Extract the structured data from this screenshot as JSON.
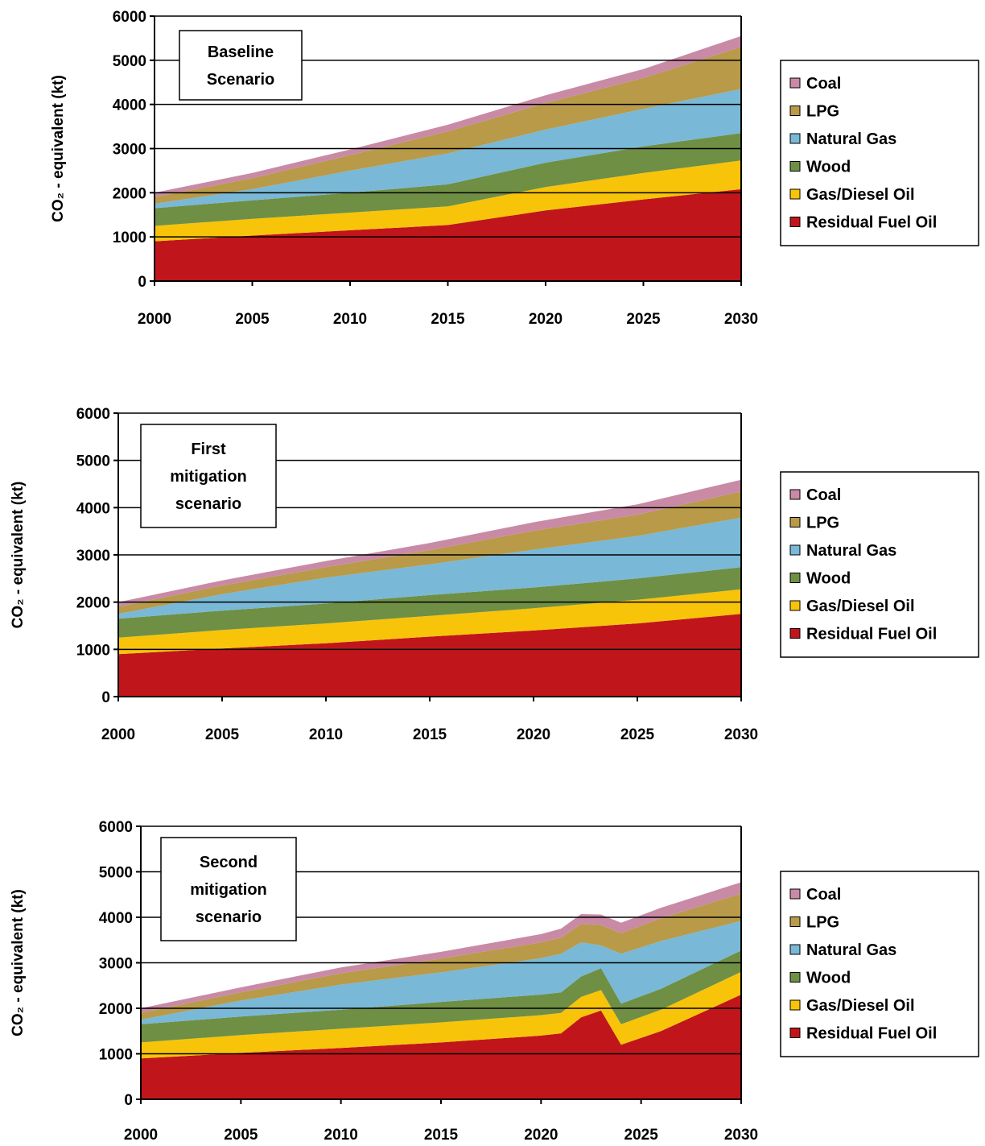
{
  "colors": {
    "Residual Fuel Oil": "#c0161b",
    "Gas/Diesel Oil": "#f7c40a",
    "Wood": "#6f8f45",
    "Natural Gas": "#79b8d6",
    "LPG": "#b89a48",
    "Coal": "#c98aa6"
  },
  "chart_data": [
    {
      "type": "area",
      "stacked": true,
      "title": "Baseline Scenario",
      "title_lines": [
        "Baseline",
        "Scenario"
      ],
      "ylabel": "CO₂ - equivalent (kt)",
      "xlabel": "",
      "x": [
        2000,
        2005,
        2010,
        2015,
        2020,
        2025,
        2030
      ],
      "ylim": [
        0,
        6000
      ],
      "yticks": [
        "0",
        "1000",
        "2000",
        "3000",
        "4000",
        "5000",
        "6000"
      ],
      "xticks": [
        "2000",
        "2005",
        "2010",
        "2015",
        "2020",
        "2025",
        "2030"
      ],
      "grid": true,
      "legend_position": "right",
      "series": [
        {
          "name": "Residual Fuel Oil",
          "values": [
            900,
            1030,
            1150,
            1270,
            1600,
            1850,
            2080
          ]
        },
        {
          "name": "Gas/Diesel Oil",
          "values": [
            350,
            380,
            400,
            420,
            530,
            600,
            650
          ]
        },
        {
          "name": "Wood",
          "values": [
            400,
            420,
            450,
            500,
            550,
            600,
            620
          ]
        },
        {
          "name": "Natural Gas",
          "values": [
            100,
            250,
            500,
            700,
            750,
            850,
            1000
          ]
        },
        {
          "name": "LPG",
          "values": [
            150,
            250,
            350,
            500,
            600,
            700,
            950
          ]
        },
        {
          "name": "Coal",
          "values": [
            100,
            120,
            130,
            150,
            180,
            200,
            250
          ]
        }
      ]
    },
    {
      "type": "area",
      "stacked": true,
      "title": "First mitigation scenario",
      "title_lines": [
        "First",
        "mitigation",
        "scenario"
      ],
      "ylabel": "CO₂ - equivalent (kt)",
      "xlabel": "",
      "x": [
        2000,
        2005,
        2010,
        2015,
        2020,
        2025,
        2030
      ],
      "ylim": [
        0,
        6000
      ],
      "yticks": [
        "0",
        "1000",
        "2000",
        "3000",
        "4000",
        "5000",
        "6000"
      ],
      "xticks": [
        "2000",
        "2005",
        "2010",
        "2015",
        "2020",
        "2025",
        "2030"
      ],
      "grid": true,
      "legend_position": "right",
      "series": [
        {
          "name": "Residual Fuel Oil",
          "values": [
            900,
            1020,
            1130,
            1270,
            1400,
            1550,
            1750
          ]
        },
        {
          "name": "Gas/Diesel Oil",
          "values": [
            350,
            390,
            420,
            440,
            470,
            500,
            520
          ]
        },
        {
          "name": "Wood",
          "values": [
            400,
            410,
            420,
            440,
            440,
            450,
            470
          ]
        },
        {
          "name": "Natural Gas",
          "values": [
            100,
            350,
            550,
            650,
            800,
            900,
            1050
          ]
        },
        {
          "name": "LPG",
          "values": [
            150,
            180,
            220,
            300,
            400,
            450,
            550
          ]
        },
        {
          "name": "Coal",
          "values": [
            100,
            110,
            130,
            150,
            180,
            220,
            250
          ]
        }
      ]
    },
    {
      "type": "area",
      "stacked": true,
      "title": "Second mitigation scenario",
      "title_lines": [
        "Second",
        "mitigation",
        "scenario"
      ],
      "ylabel": "CO₂ - equivalent (kt)",
      "xlabel": "",
      "x": [
        2000,
        2005,
        2010,
        2015,
        2020,
        2021,
        2022,
        2023,
        2024,
        2026,
        2030
      ],
      "ylim": [
        0,
        6000
      ],
      "yticks": [
        "0",
        "1000",
        "2000",
        "3000",
        "4000",
        "5000",
        "6000"
      ],
      "xticks": [
        "2000",
        "2005",
        "2010",
        "2015",
        "2020",
        "2025",
        "2030"
      ],
      "grid": true,
      "legend_position": "right",
      "series": [
        {
          "name": "Residual Fuel Oil",
          "values": [
            900,
            1020,
            1130,
            1250,
            1400,
            1450,
            1800,
            1950,
            1200,
            1500,
            2300
          ]
        },
        {
          "name": "Gas/Diesel Oil",
          "values": [
            350,
            390,
            420,
            440,
            450,
            450,
            450,
            450,
            450,
            470,
            500
          ]
        },
        {
          "name": "Wood",
          "values": [
            400,
            410,
            420,
            450,
            450,
            450,
            450,
            480,
            450,
            460,
            470
          ]
        },
        {
          "name": "Natural Gas",
          "values": [
            100,
            350,
            550,
            650,
            800,
            850,
            750,
            500,
            1100,
            1050,
            650
          ]
        },
        {
          "name": "LPG",
          "values": [
            150,
            180,
            250,
            300,
            350,
            350,
            400,
            450,
            450,
            500,
            600
          ]
        },
        {
          "name": "Coal",
          "values": [
            100,
            110,
            130,
            150,
            180,
            200,
            220,
            230,
            230,
            230,
            250
          ]
        }
      ]
    }
  ],
  "legend_order": [
    "Coal",
    "LPG",
    "Natural Gas",
    "Wood",
    "Gas/Diesel Oil",
    "Residual Fuel Oil"
  ]
}
